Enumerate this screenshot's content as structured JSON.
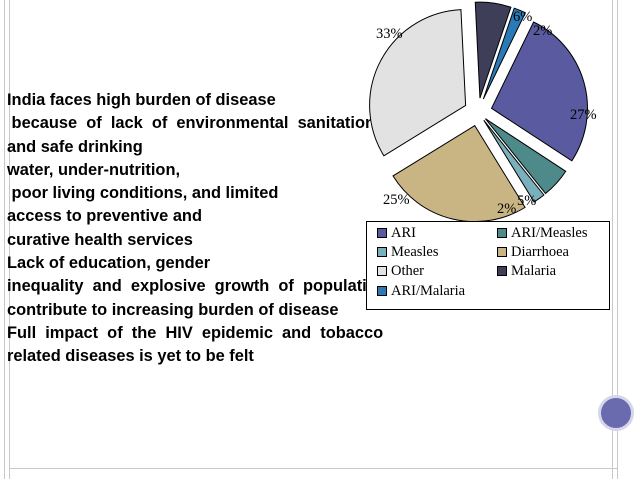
{
  "body_text": [
    "India faces high burden of disease",
    " because  of  lack  of  environmental  sanitation",
    "and safe drinking",
    "water, under-nutrition,",
    " poor living conditions, and limited",
    "access to preventive and",
    "curative health services",
    "Lack of education, gender",
    "inequality  and  explosive  growth  of  population",
    "contribute to increasing burden of disease",
    "Full  impact  of  the  HIV  epidemic  and  tobacco",
    "related diseases is yet to be felt"
  ],
  "chart_data": {
    "type": "pie",
    "exploded": true,
    "slices": [
      {
        "name": "ARI",
        "value": 27,
        "label": "27%",
        "color": "#5a5aa0"
      },
      {
        "name": "ARI/Measles",
        "value": 5,
        "label": "5%",
        "color": "#4e8a8a"
      },
      {
        "name": "Measles",
        "value": 2,
        "label": "2%",
        "color": "#7ab0bc"
      },
      {
        "name": "Diarrhoea",
        "value": 25,
        "label": "25%",
        "color": "#c9b584"
      },
      {
        "name": "Other",
        "value": 33,
        "label": "33%",
        "color": "#e2e2e2"
      },
      {
        "name": "Malaria",
        "value": 6,
        "label": "6%",
        "color": "#3e3e58"
      },
      {
        "name": "ARI/Malaria",
        "value": 2,
        "label": "2%",
        "color": "#2a7ab8"
      }
    ],
    "legend": {
      "placement": "bottom-right",
      "entries": [
        {
          "name": "ARI",
          "color": "#5a5aa0"
        },
        {
          "name": "ARI/Measles",
          "color": "#4e8a8a"
        },
        {
          "name": "Measles",
          "color": "#7ab0bc"
        },
        {
          "name": "Diarrhoea",
          "color": "#c9b584"
        },
        {
          "name": "Other",
          "color": "#e2e2e2"
        },
        {
          "name": "Malaria",
          "color": "#3e3e58"
        },
        {
          "name": "ARI/Malaria",
          "color": "#2a7ab8"
        }
      ]
    }
  },
  "decor": {
    "accent_circle_color": "#6a6aae",
    "border_color": "#c8c8c8"
  }
}
